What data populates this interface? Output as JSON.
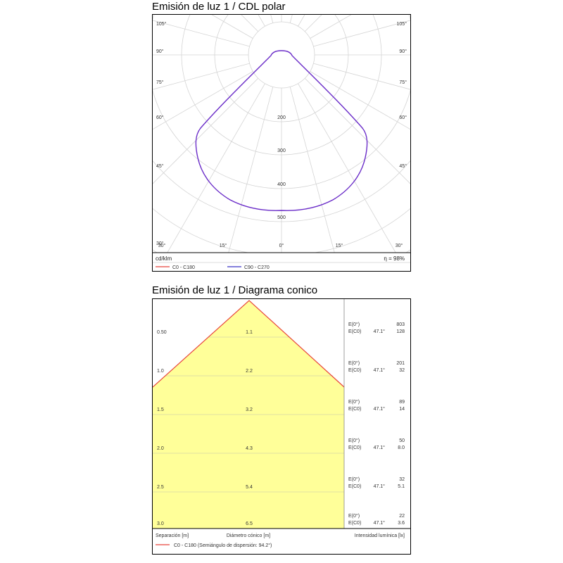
{
  "polar": {
    "title": "Emisión de luz 1 / CDL polar",
    "angles_left": [
      "105°",
      "90°",
      "75°",
      "60°",
      "45°",
      "30°",
      "15°",
      "0°"
    ],
    "angles_right": [
      "105°",
      "90°",
      "75°",
      "60°",
      "45°",
      "30°",
      "15°"
    ],
    "bottom_labels": [
      "30°",
      "15°",
      "0°",
      "15°",
      "30°"
    ],
    "radial_labels": [
      "200",
      "300",
      "400",
      "500"
    ],
    "unit": "cd/klm",
    "efficiency": "η = 98%",
    "legend": [
      {
        "label": "C0 - C180",
        "color": "#e8453c"
      },
      {
        "label": "C90 - C270",
        "color": "#3b35c8"
      }
    ]
  },
  "cone": {
    "title": "Emisión de luz 1 / Diagrama conico",
    "rows": [
      {
        "separation": "0.50",
        "diameter": "1.1",
        "e0_label": "E(0°)",
        "ec0_label": "E(C0)",
        "angle": "47.1°",
        "e0": "803",
        "ec0": "128"
      },
      {
        "separation": "1.0",
        "diameter": "2.2",
        "e0_label": "E(0°)",
        "ec0_label": "E(C0)",
        "angle": "47.1°",
        "e0": "201",
        "ec0": "32"
      },
      {
        "separation": "1.5",
        "diameter": "3.2",
        "e0_label": "E(0°)",
        "ec0_label": "E(C0)",
        "angle": "47.1°",
        "e0": "89",
        "ec0": "14"
      },
      {
        "separation": "2.0",
        "diameter": "4.3",
        "e0_label": "E(0°)",
        "ec0_label": "E(C0)",
        "angle": "47.1°",
        "e0": "50",
        "ec0": "8.0"
      },
      {
        "separation": "2.5",
        "diameter": "5.4",
        "e0_label": "E(0°)",
        "ec0_label": "E(C0)",
        "angle": "47.1°",
        "e0": "32",
        "ec0": "5.1"
      },
      {
        "separation": "3.0",
        "diameter": "6.5",
        "e0_label": "E(0°)",
        "ec0_label": "E(C0)",
        "angle": "47.1°",
        "e0": "22",
        "ec0": "3.6"
      }
    ],
    "footer_separation": "Separación [m]",
    "footer_diameter": "Diámetro cónico [m]",
    "footer_intensity": "Intensidad lumínica [lx]",
    "legend": {
      "label": "C0 - C180 (Semiángulo de dispersión: 94.2°)",
      "color": "#e8453c"
    },
    "fill_color": "#ffff99"
  }
}
